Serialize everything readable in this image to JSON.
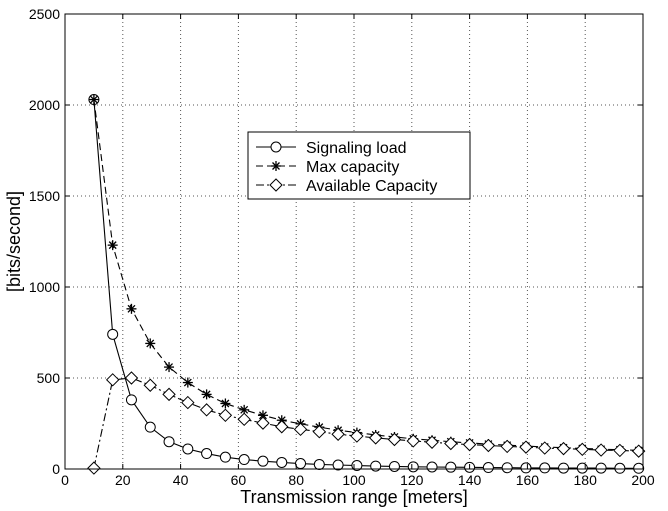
{
  "chart_data": {
    "type": "line",
    "xlabel": "Transmission range [meters]",
    "ylabel": "[bits/second]",
    "xlim": [
      0,
      200
    ],
    "ylim": [
      0,
      2500
    ],
    "xticks": [
      0,
      20,
      40,
      60,
      80,
      100,
      120,
      140,
      160,
      180,
      200
    ],
    "yticks": [
      0,
      500,
      1000,
      1500,
      2000,
      2500
    ],
    "grid": true,
    "legend": "top-center",
    "x": [
      10,
      16.5,
      23,
      29.5,
      36,
      42.5,
      49,
      55.5,
      62,
      68.5,
      75,
      81.5,
      88,
      94.5,
      101,
      107.5,
      114,
      120.5,
      127,
      133.5,
      140,
      146.5,
      153,
      159.5,
      166,
      172.5,
      179,
      185.5,
      192,
      198.5
    ],
    "series": [
      {
        "name": "Signaling load",
        "marker": "circle",
        "dash": "solid",
        "values": [
          2030,
          740,
          380,
          230,
          150,
          110,
          85,
          65,
          52,
          43,
          36,
          30,
          25,
          22,
          19,
          16,
          14,
          12,
          11,
          10,
          9,
          8,
          7,
          6,
          6,
          5,
          5,
          5,
          4,
          4
        ]
      },
      {
        "name": "Max capacity",
        "marker": "star",
        "dash": "dashed",
        "values": [
          2030,
          1230,
          880,
          690,
          560,
          475,
          410,
          360,
          325,
          295,
          268,
          248,
          230,
          213,
          200,
          187,
          176,
          166,
          158,
          150,
          143,
          137,
          131,
          126,
          121,
          117,
          113,
          109,
          106,
          102
        ]
      },
      {
        "name": "Available Capacity",
        "marker": "diamond",
        "dash": "dashdot",
        "values": [
          5,
          490,
          500,
          460,
          410,
          365,
          325,
          295,
          273,
          252,
          232,
          218,
          205,
          191,
          181,
          171,
          162,
          154,
          147,
          140,
          134,
          129,
          124,
          120,
          115,
          112,
          108,
          104,
          102,
          98
        ]
      }
    ]
  }
}
